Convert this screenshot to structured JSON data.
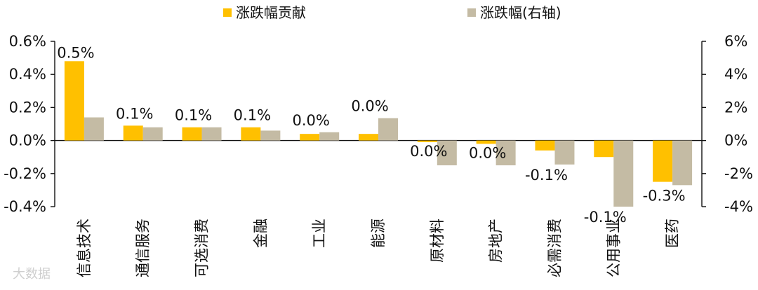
{
  "chart_data": {
    "type": "bar",
    "categories": [
      "信息技术",
      "通信服务",
      "可选消费",
      "金融",
      "工业",
      "能源",
      "原材料",
      "房地产",
      "必需消费",
      "公用事业",
      "医药"
    ],
    "series": [
      {
        "name": "涨跌幅贡献",
        "axis": "left",
        "color": "#FFC000",
        "values": [
          0.48,
          0.09,
          0.08,
          0.08,
          0.04,
          0.04,
          -0.01,
          -0.02,
          -0.06,
          -0.1,
          -0.25
        ]
      },
      {
        "name": "涨跌幅(右轴)",
        "axis": "right",
        "color": "#C4BBA4",
        "values": [
          1.4,
          0.8,
          0.8,
          0.6,
          0.5,
          1.35,
          -1.5,
          -1.5,
          -1.45,
          -4.0,
          -2.7
        ]
      }
    ],
    "data_labels": [
      "0.5%",
      "0.1%",
      "0.1%",
      "0.1%",
      "0.0%",
      "0.0%",
      "0.0%",
      "0.0%",
      "-0.1%",
      "-0.1%",
      "-0.3%"
    ],
    "y_left": {
      "ticks": [
        "0.6%",
        "0.4%",
        "0.2%",
        "0.0%",
        "-0.2%",
        "-0.4%"
      ],
      "min": -0.4,
      "max": 0.6
    },
    "y_right": {
      "ticks": [
        "6%",
        "4%",
        "2%",
        "0%",
        "-2%",
        "-4%"
      ],
      "min": -4,
      "max": 6
    },
    "legend_position": "top-center",
    "grid": false
  },
  "watermark": "大数据"
}
